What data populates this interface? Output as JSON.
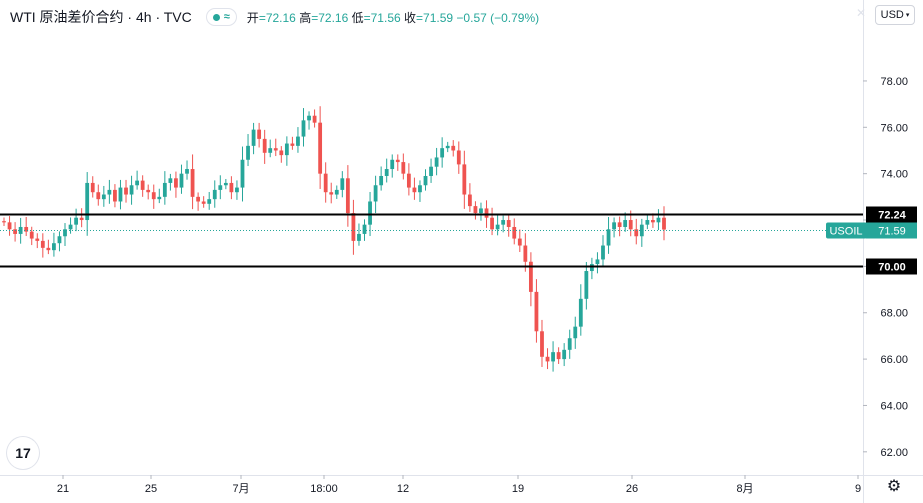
{
  "header": {
    "symbol_title": "WTI 原油差价合约 · 4h · TVC",
    "approx_glyph": "≈",
    "open_label": "开",
    "open_value": "=72.16",
    "high_label": "高",
    "high_value": "=72.16",
    "low_label": "低",
    "low_value": "=71.56",
    "close_label": "收",
    "close_value": "=71.59",
    "change": "−0.57 (−0.79%)"
  },
  "currency_selector": {
    "label": "USD",
    "chevron": "▾"
  },
  "logo_text": "17",
  "settings_icon": "⚙",
  "colors": {
    "up": "#26a69a",
    "down": "#ef5350",
    "line": "#000000",
    "last_price": "#26a69a"
  },
  "chart_data": {
    "type": "candlestick",
    "y_axis": {
      "ticks": [
        "62.00",
        "64.00",
        "66.00",
        "68.00",
        "70.00",
        "72.00",
        "74.00",
        "76.00",
        "78.00"
      ],
      "range": [
        61.0,
        80.5
      ],
      "unit": "USD"
    },
    "x_axis": {
      "ticks": [
        "21",
        "25",
        "7月",
        "18:00",
        "12",
        "19",
        "26",
        "8月",
        "9"
      ]
    },
    "horizontal_lines": [
      {
        "value": 72.24,
        "label": "72.24"
      },
      {
        "value": 70.0,
        "label": "70.00"
      }
    ],
    "last_price": {
      "symbol": "USOIL",
      "value": 71.59,
      "label": "71.59"
    },
    "close_series": [
      71.9,
      71.6,
      71.4,
      71.7,
      71.5,
      71.2,
      71.1,
      70.8,
      70.7,
      71.0,
      71.3,
      71.6,
      71.8,
      72.1,
      72.0,
      73.6,
      73.2,
      72.9,
      73.1,
      73.3,
      72.8,
      73.4,
      73.1,
      73.5,
      73.7,
      73.3,
      73.2,
      72.9,
      73.0,
      73.6,
      73.8,
      73.4,
      74.0,
      74.2,
      73.0,
      72.8,
      72.7,
      72.9,
      73.3,
      73.5,
      73.6,
      73.2,
      73.4,
      74.6,
      75.2,
      75.9,
      75.5,
      74.9,
      75.1,
      75.0,
      74.8,
      75.3,
      75.2,
      75.6,
      76.3,
      76.5,
      76.2,
      74.0,
      73.2,
      73.1,
      73.3,
      73.8,
      72.3,
      71.1,
      71.4,
      71.8,
      72.8,
      73.5,
      73.9,
      74.2,
      74.6,
      74.5,
      74.0,
      73.4,
      73.2,
      73.5,
      73.9,
      74.3,
      74.7,
      75.1,
      75.2,
      75.0,
      74.4,
      73.1,
      72.6,
      72.3,
      72.5,
      72.1,
      71.6,
      71.8,
      72.0,
      71.7,
      71.2,
      70.9,
      70.2,
      68.9,
      67.2,
      66.1,
      65.9,
      66.3,
      66.0,
      66.4,
      66.9,
      67.4,
      68.6,
      69.8,
      70.1,
      70.3,
      70.9,
      71.6,
      71.9,
      71.7,
      72.0,
      71.6,
      71.3,
      71.8,
      72.0,
      71.9,
      72.1,
      71.59
    ]
  }
}
